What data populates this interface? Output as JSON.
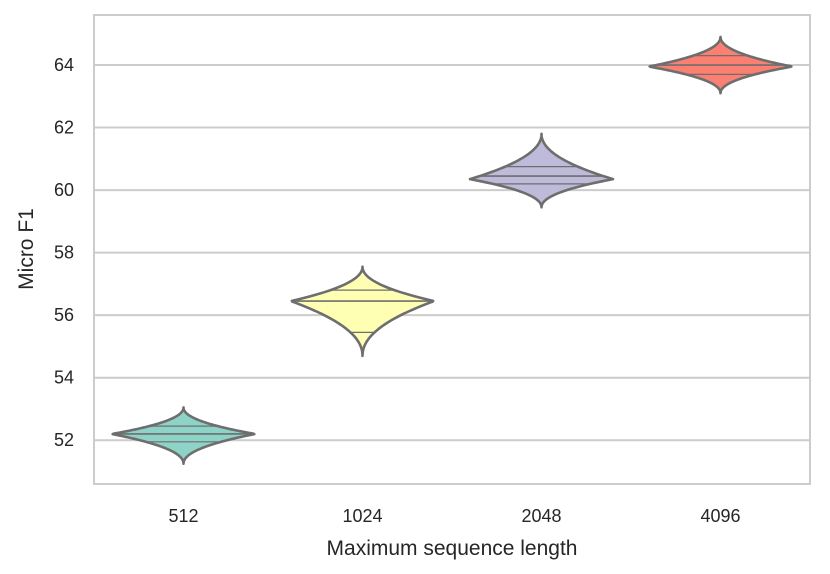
{
  "chart_data": {
    "type": "violin",
    "xlabel": "Maximum sequence length",
    "ylabel": "Micro F1",
    "ylim": [
      50.6,
      65.6
    ],
    "yticks": [
      52,
      54,
      56,
      58,
      60,
      62,
      64
    ],
    "grid": "horizontal",
    "categories": [
      "512",
      "1024",
      "2048",
      "4096"
    ],
    "series": [
      {
        "category": "512",
        "color": "#8dd3c7",
        "min": 51.25,
        "max": 53.05,
        "peak": 52.2,
        "quartiles": [
          51.95,
          52.2,
          52.45
        ]
      },
      {
        "category": "1024",
        "color": "#ffffb3",
        "min": 54.7,
        "max": 57.55,
        "peak": 56.45,
        "quartiles": [
          55.45,
          56.45,
          56.8
        ]
      },
      {
        "category": "2048",
        "color": "#bebada",
        "min": 59.45,
        "max": 61.8,
        "peak": 60.35,
        "quartiles": [
          60.2,
          60.45,
          60.75
        ]
      },
      {
        "category": "4096",
        "color": "#fb8072",
        "min": 63.1,
        "max": 64.9,
        "peak": 63.95,
        "quartiles": [
          63.7,
          64.0,
          64.3
        ]
      }
    ]
  }
}
